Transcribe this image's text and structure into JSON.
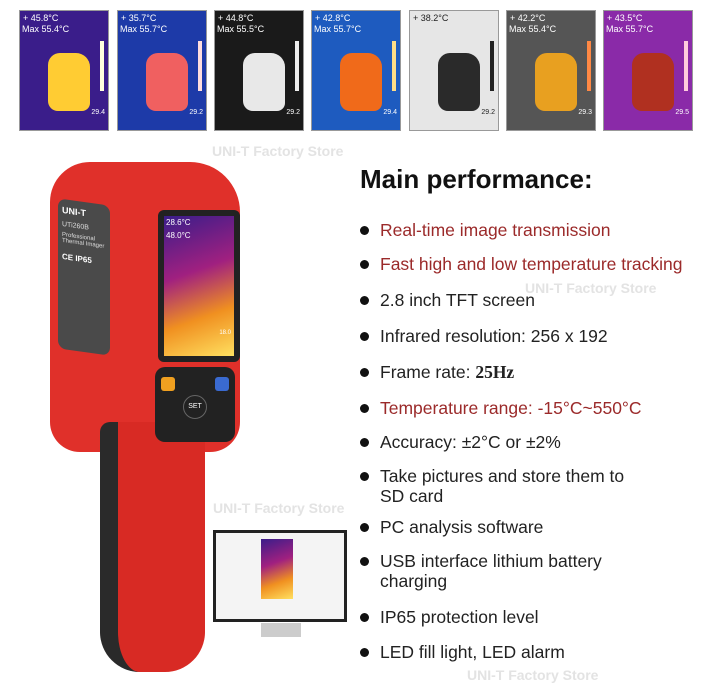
{
  "thumbnails": [
    {
      "temp": "+ 45.8°C",
      "max": "Max 55.4°C",
      "min": "29.4",
      "bg": "#3a1d8a",
      "blob": "#ffcc33",
      "bar": "#ffd"
    },
    {
      "temp": "+ 35.7°C",
      "max": "Max 55.7°C",
      "min": "29.2",
      "bg": "#1d3aa8",
      "blob": "#f06060",
      "bar": "#fdd"
    },
    {
      "temp": "+ 44.8°C",
      "max": "Max 55.5°C",
      "min": "29.2",
      "bg": "#1a1a1a",
      "blob": "#e8e8e8",
      "bar": "#eee"
    },
    {
      "temp": "+ 42.8°C",
      "max": "Max 55.7°C",
      "min": "29.4",
      "bg": "#1e5bbf",
      "blob": "#f06a1a",
      "bar": "#fd8"
    },
    {
      "temp": "+ 38.2°C",
      "max": "",
      "min": "29.2",
      "bg": "#e6e6e6",
      "blob": "#2a2a2a",
      "bar": "#222"
    },
    {
      "temp": "+ 42.2°C",
      "max": "Max 55.4°C",
      "min": "29.3",
      "bg": "#555",
      "blob": "#e8a020",
      "bar": "#f84"
    },
    {
      "temp": "+ 43.5°C",
      "max": "Max 55.7°C",
      "min": "29.5",
      "bg": "#8a2aa8",
      "blob": "#b03020",
      "bar": "#fcd"
    }
  ],
  "watermark": "UNI-T Factory Store",
  "title": "Main performance:",
  "features": [
    {
      "text": "Real-time image transmission",
      "highlight": true
    },
    {
      "text": "Fast high and low temperature tracking",
      "highlight": true
    },
    {
      "text": "2.8 inch TFT screen"
    },
    {
      "text": "Infrared resolution: 256 x 192"
    },
    {
      "label": "Frame rate: ",
      "value": "25Hz"
    },
    {
      "text": "Temperature range: -15°C~550°C",
      "highlight": true
    },
    {
      "text": "Accuracy: ±2°C or ±2%"
    },
    {
      "text": "Take pictures and store them to SD card"
    },
    {
      "text": "PC analysis software"
    },
    {
      "text": "USB interface lithium battery charging"
    },
    {
      "text": "IP65 protection level"
    },
    {
      "text": "LED fill light, LED alarm"
    }
  ],
  "device": {
    "brand": "UNI-T",
    "model": "UTi260B",
    "desc": "Professional Thermal Imager",
    "cert": "CE IP65",
    "set": "SET",
    "screen_temp": "28.6°C",
    "screen_max": "48.0°C",
    "screen_min": "18.0"
  },
  "colors": {
    "device_red": "#e0302a",
    "highlight_text": "#9b2a2a"
  }
}
